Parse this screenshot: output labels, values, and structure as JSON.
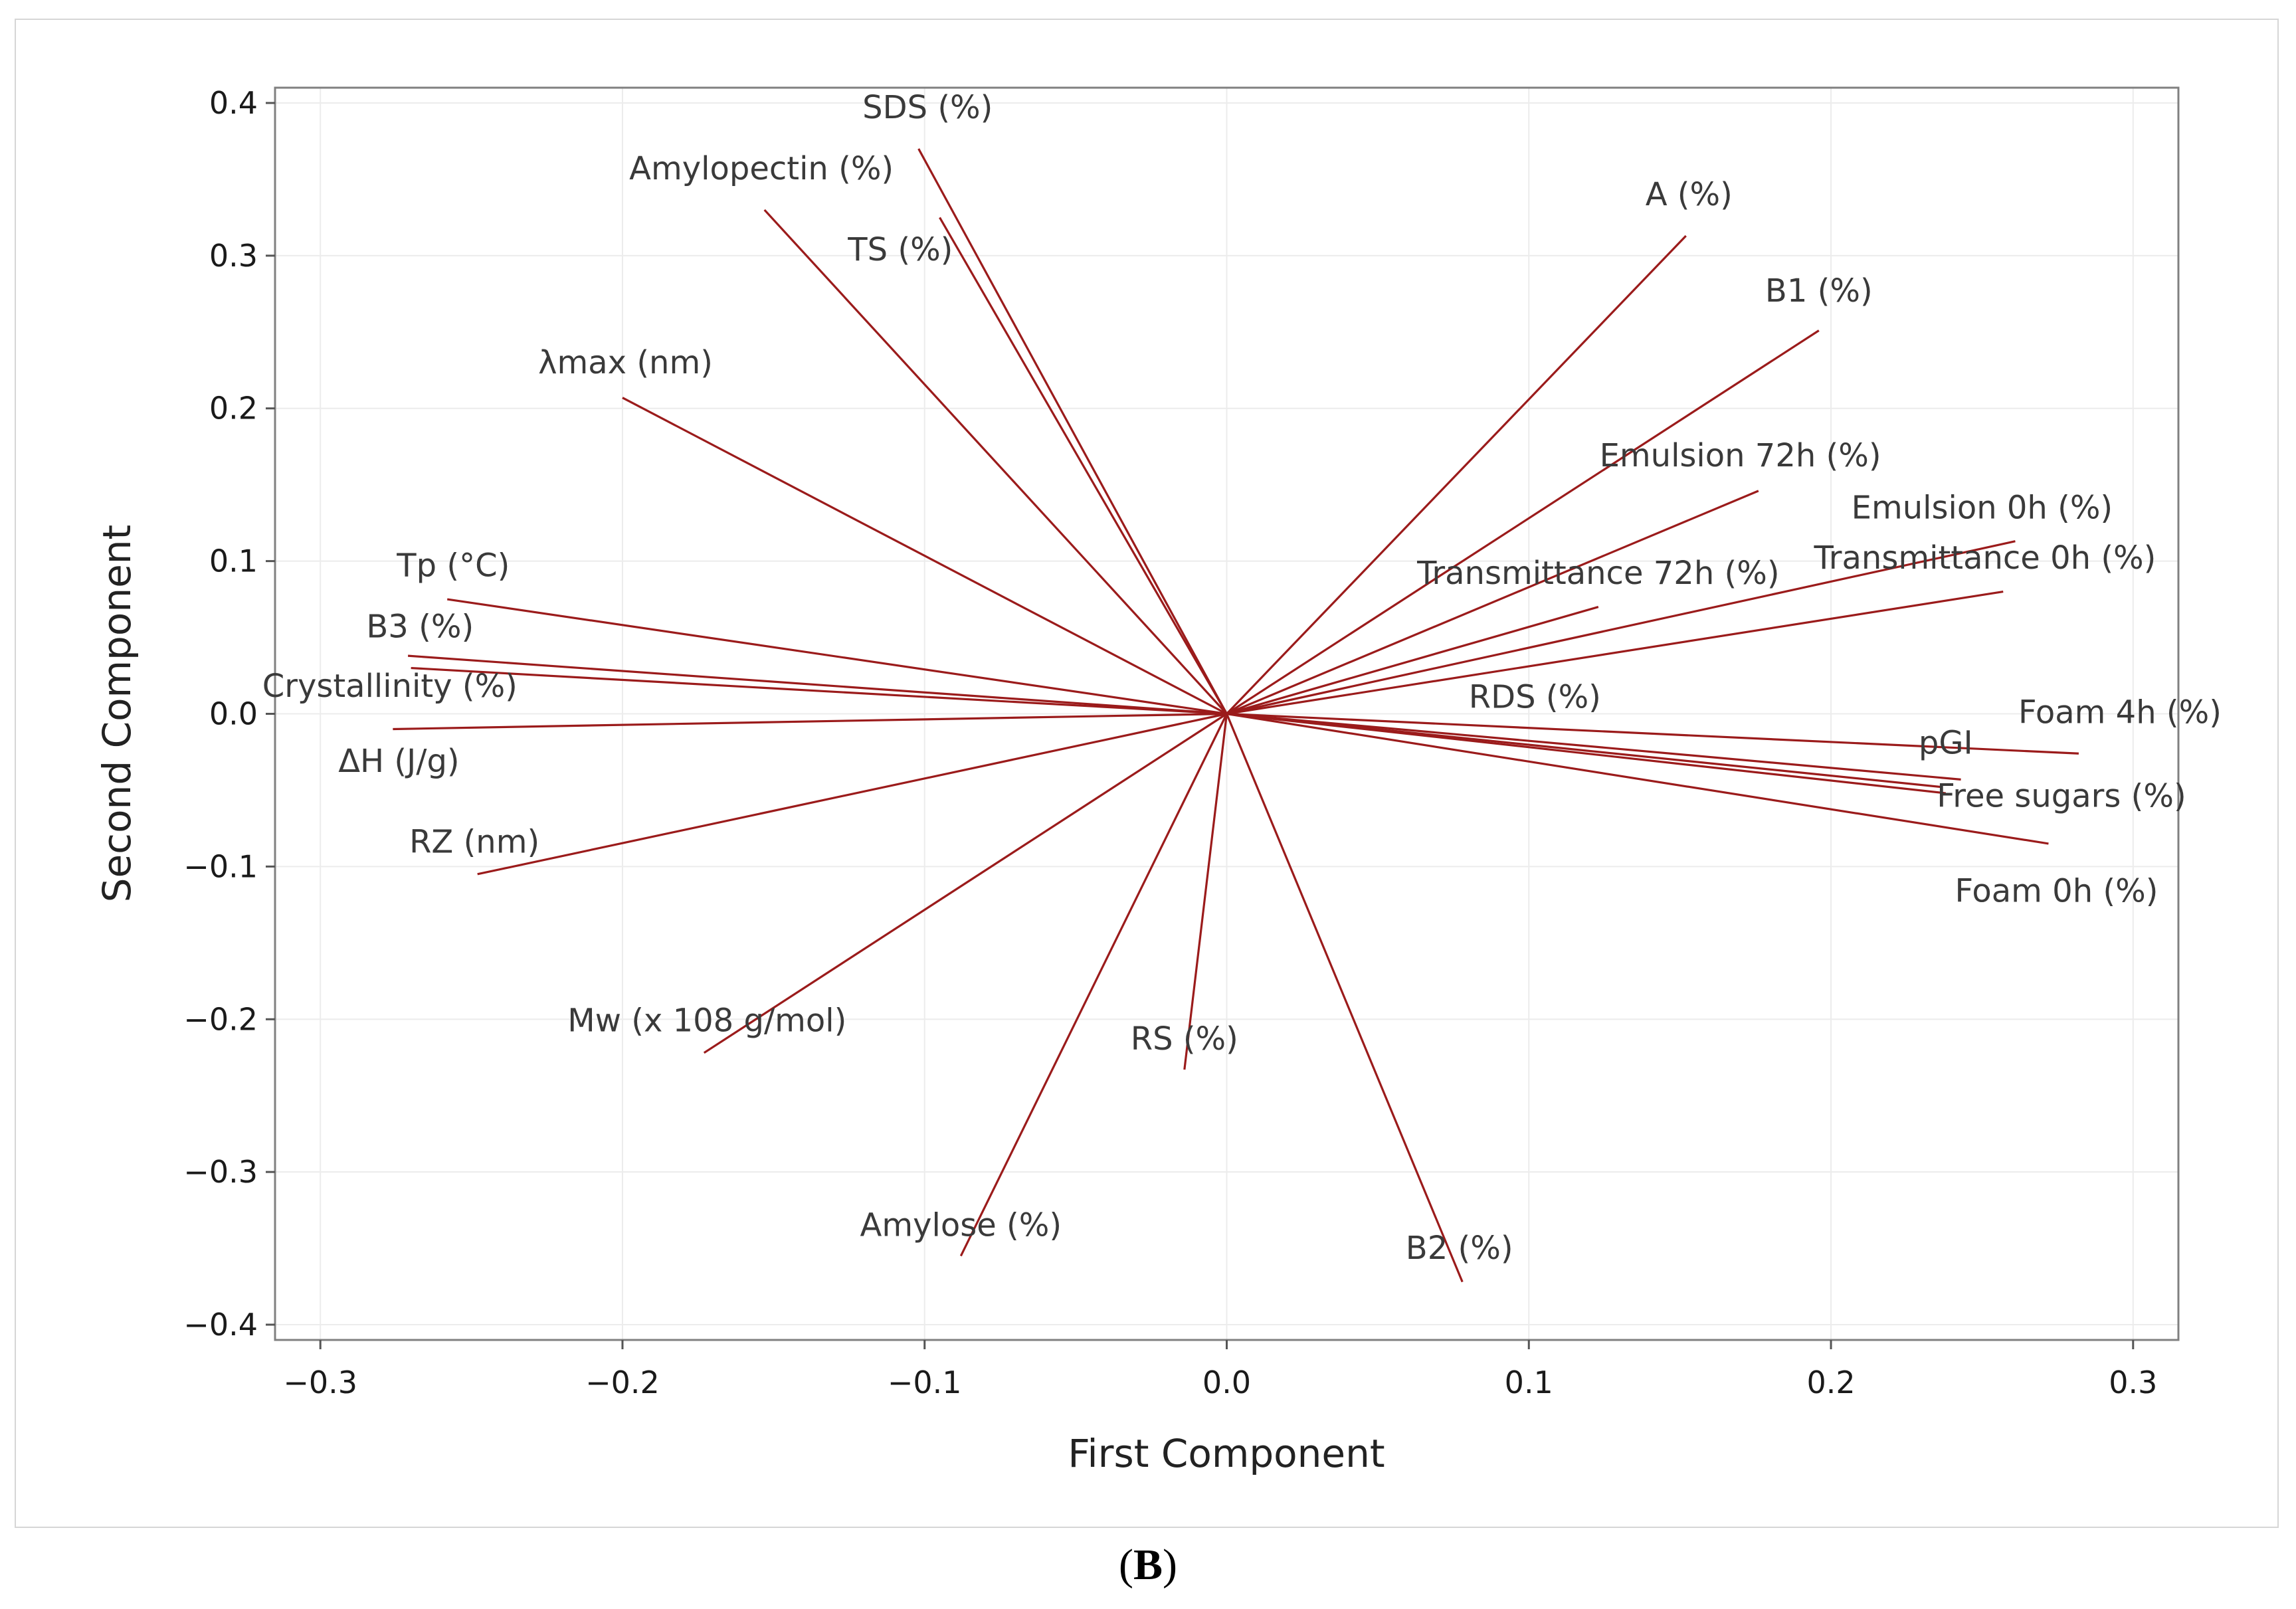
{
  "chart_data": {
    "type": "biplot",
    "title": "",
    "xlabel": "First Component",
    "ylabel": "Second Component",
    "xlim": [
      -0.315,
      0.315
    ],
    "ylim": [
      -0.41,
      0.41
    ],
    "xticks": [
      -0.3,
      -0.2,
      -0.1,
      0.0,
      0.1,
      0.2,
      0.3
    ],
    "xtick_labels": [
      "−0.3",
      "−0.2",
      "−0.1",
      "0.0",
      "0.1",
      "0.2",
      "0.3"
    ],
    "yticks": [
      0.4,
      0.3,
      0.2,
      0.1,
      0.0,
      -0.1,
      -0.2,
      -0.3,
      -0.4
    ],
    "ytick_labels": [
      "0.4",
      "0.3",
      "0.2",
      "0.1",
      "0.0",
      "−0.1",
      "−0.2",
      "−0.3",
      "−0.4"
    ],
    "grid": true,
    "vector_color": "#9b1b1b",
    "vectors": [
      {
        "name": "SDS (%)",
        "x": -0.102,
        "y": 0.37,
        "label_x": -0.099,
        "label_y": 0.39,
        "anchor": "middle"
      },
      {
        "name": "Amylopectin (%)",
        "x": -0.153,
        "y": 0.33,
        "label_x": -0.154,
        "label_y": 0.35,
        "anchor": "middle"
      },
      {
        "name": "TS (%)",
        "x": -0.095,
        "y": 0.325,
        "label_x": -0.108,
        "label_y": 0.297,
        "anchor": "middle"
      },
      {
        "name": "A (%)",
        "x": 0.152,
        "y": 0.313,
        "label_x": 0.153,
        "label_y": 0.333,
        "anchor": "middle"
      },
      {
        "name": "B1 (%)",
        "x": 0.196,
        "y": 0.251,
        "label_x": 0.196,
        "label_y": 0.27,
        "anchor": "middle"
      },
      {
        "name": "λmax (nm)",
        "x": -0.2,
        "y": 0.207,
        "label_x": -0.199,
        "label_y": 0.223,
        "anchor": "middle"
      },
      {
        "name": "Emulsion 72h (%)",
        "x": 0.176,
        "y": 0.146,
        "label_x": 0.17,
        "label_y": 0.162,
        "anchor": "middle"
      },
      {
        "name": "Emulsion 0h (%)",
        "x": 0.261,
        "y": 0.113,
        "label_x": 0.25,
        "label_y": 0.128,
        "anchor": "middle"
      },
      {
        "name": "Transmittance 0h (%)",
        "x": 0.257,
        "y": 0.08,
        "label_x": 0.251,
        "label_y": 0.095,
        "anchor": "middle"
      },
      {
        "name": "Transmittance 72h (%)",
        "x": 0.123,
        "y": 0.07,
        "label_x": 0.123,
        "label_y": 0.085,
        "anchor": "middle"
      },
      {
        "name": "Tp (°C)",
        "x": -0.258,
        "y": 0.075,
        "label_x": -0.256,
        "label_y": 0.09,
        "anchor": "middle"
      },
      {
        "name": "B3 (%)",
        "x": -0.271,
        "y": 0.038,
        "label_x": -0.267,
        "label_y": 0.05,
        "anchor": "middle"
      },
      {
        "name": "Crystallinity (%)",
        "x": -0.27,
        "y": 0.03,
        "label_x": -0.277,
        "label_y": 0.011,
        "anchor": "middle"
      },
      {
        "name": "ΔH (J/g)",
        "x": -0.276,
        "y": -0.01,
        "label_x": -0.274,
        "label_y": -0.038,
        "anchor": "middle"
      },
      {
        "name": "RZ (nm)",
        "x": -0.248,
        "y": -0.105,
        "label_x": -0.249,
        "label_y": -0.091,
        "anchor": "middle"
      },
      {
        "name": "Mw (x 108 g/mol)",
        "x": -0.173,
        "y": -0.222,
        "label_x": -0.172,
        "label_y": -0.208,
        "anchor": "middle"
      },
      {
        "name": "RS (%)",
        "x": -0.014,
        "y": -0.233,
        "label_x": -0.014,
        "label_y": -0.22,
        "anchor": "middle"
      },
      {
        "name": "Amylose (%)",
        "x": -0.088,
        "y": -0.355,
        "label_x": -0.088,
        "label_y": -0.342,
        "anchor": "middle"
      },
      {
        "name": "B2 (%)",
        "x": 0.078,
        "y": -0.372,
        "label_x": 0.077,
        "label_y": -0.357,
        "anchor": "middle"
      },
      {
        "name": "RDS (%)",
        "x": 0.243,
        "y": -0.043,
        "label_x": 0.102,
        "label_y": 0.004,
        "anchor": "middle"
      },
      {
        "name": "Foam 4h (%)",
        "x": 0.282,
        "y": -0.026,
        "label_x": 0.262,
        "label_y": -0.006,
        "anchor": "start"
      },
      {
        "name": "pGI",
        "x": 0.237,
        "y": -0.048,
        "label_x": 0.229,
        "label_y": -0.026,
        "anchor": "start"
      },
      {
        "name": "Free sugars (%)",
        "x": 0.238,
        "y": -0.052,
        "label_x": 0.235,
        "label_y": -0.061,
        "anchor": "start"
      },
      {
        "name": "Foam 0h (%)",
        "x": 0.272,
        "y": -0.085,
        "label_x": 0.241,
        "label_y": -0.123,
        "anchor": "start"
      }
    ]
  },
  "caption": {
    "open": "(",
    "letter": "B",
    "close": ")"
  }
}
